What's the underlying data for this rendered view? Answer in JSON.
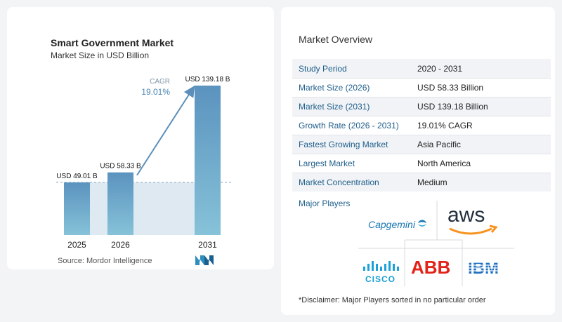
{
  "chart_card": {
    "title": "Smart Government Market",
    "subtitle": "Market Size in USD Billion",
    "source": "Source:  Mordor Intelligence"
  },
  "chart_data": {
    "type": "bar",
    "title": "Smart Government Market",
    "subtitle": "Market Size in USD Billion",
    "categories": [
      "2025",
      "2026",
      "2031"
    ],
    "values": [
      49.01,
      58.33,
      139.18
    ],
    "value_labels": [
      "USD 49.01 B",
      "USD 58.33 B",
      "USD 139.18 B"
    ],
    "unit": "USD Billion",
    "cagr_label": "CAGR",
    "cagr_value": "19.01%",
    "ylim": [
      0,
      139.18
    ],
    "grid": false,
    "colors": {
      "bar_top": "#5b93bf",
      "bar_bottom": "#86c2d8",
      "shade": "#dfe9f2",
      "arrow": "#5b8fba"
    }
  },
  "overview": {
    "title": "Market Overview",
    "rows": [
      {
        "label": "Study Period",
        "value": "2020 - 2031"
      },
      {
        "label": "Market Size (2026)",
        "value": "USD 58.33 Billion"
      },
      {
        "label": "Market Size (2031)",
        "value": "USD 139.18 Billion"
      },
      {
        "label": "Growth Rate (2026 - 2031)",
        "value": "19.01% CAGR"
      },
      {
        "label": "Fastest Growing Market",
        "value": "Asia Pacific"
      },
      {
        "label": "Largest Market",
        "value": "North America"
      },
      {
        "label": "Market Concentration",
        "value": "Medium"
      }
    ]
  },
  "players": {
    "title": "Major Players",
    "logos": [
      "Capgemini",
      "aws",
      "CISCO",
      "ABB",
      "IBM"
    ]
  },
  "disclaimer": "*Disclaimer: Major Players sorted in no particular order"
}
